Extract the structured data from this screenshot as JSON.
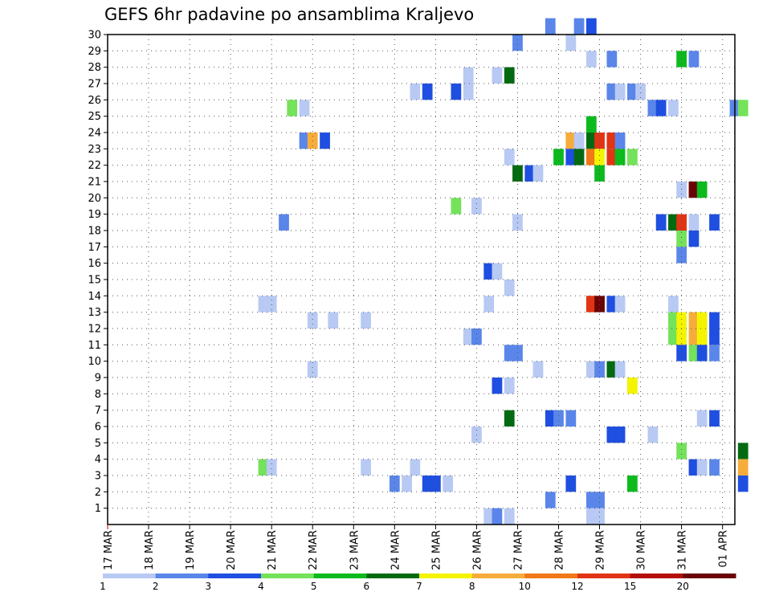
{
  "chart_data": {
    "type": "heatmap",
    "title": "GEFS 6hr padavine po ansamblima Kraljevo",
    "x_tick_labels": [
      "17 MAR",
      "18 MAR",
      "19 MAR",
      "20 MAR",
      "21 MAR",
      "22 MAR",
      "23 MAR",
      "24 MAR",
      "25 MAR",
      "26 MAR",
      "27 MAR",
      "28 MAR",
      "29 MAR",
      "30 MAR",
      "31 MAR",
      "01 APR"
    ],
    "x_range_days": [
      0,
      15.3
    ],
    "y_tick_labels": [
      "1",
      "2",
      "3",
      "4",
      "5",
      "6",
      "7",
      "8",
      "9",
      "10",
      "11",
      "12",
      "13",
      "14",
      "15",
      "16",
      "17",
      "18",
      "19",
      "20",
      "21",
      "22",
      "23",
      "24",
      "25",
      "26",
      "27",
      "28",
      "29",
      "30"
    ],
    "y_range": [
      0,
      30
    ],
    "grid": true,
    "color_levels": [
      1,
      2,
      3,
      4,
      5,
      6,
      7,
      8,
      10,
      12,
      15,
      20
    ],
    "level_colors": [
      "#b8c9f3",
      "#5a86ea",
      "#1f4fe0",
      "#74e25a",
      "#0cba1e",
      "#046a12",
      "#f4f400",
      "#f6ac3a",
      "#f07818",
      "#e03414",
      "#b40e0a",
      "#6a0404"
    ],
    "cells": [
      [
        30,
        10.8,
        1
      ],
      [
        30,
        11.5,
        1
      ],
      [
        30,
        11.8,
        2
      ],
      [
        29,
        10.0,
        1
      ],
      [
        29,
        11.3,
        0
      ],
      [
        28,
        11.8,
        0
      ],
      [
        28,
        12.3,
        1
      ],
      [
        28,
        14.0,
        4
      ],
      [
        28,
        14.3,
        1
      ],
      [
        27,
        8.8,
        0
      ],
      [
        27,
        9.5,
        0
      ],
      [
        27,
        9.8,
        5
      ],
      [
        26,
        7.5,
        0
      ],
      [
        26,
        7.8,
        2
      ],
      [
        26,
        8.5,
        2
      ],
      [
        26,
        8.8,
        0
      ],
      [
        26,
        12.3,
        1
      ],
      [
        26,
        12.5,
        0
      ],
      [
        26,
        12.8,
        1
      ],
      [
        26,
        13.0,
        0
      ],
      [
        25,
        4.5,
        3
      ],
      [
        25,
        4.8,
        0
      ],
      [
        25,
        13.3,
        1
      ],
      [
        25,
        13.5,
        2
      ],
      [
        25,
        13.8,
        0
      ],
      [
        25,
        15.3,
        1
      ],
      [
        25,
        15.5,
        3
      ],
      [
        24,
        11.8,
        4
      ],
      [
        23,
        4.8,
        1
      ],
      [
        23,
        5.0,
        7
      ],
      [
        23,
        5.3,
        2
      ],
      [
        23,
        11.3,
        7
      ],
      [
        23,
        11.5,
        0
      ],
      [
        23,
        11.8,
        5
      ],
      [
        23,
        12.0,
        9
      ],
      [
        23,
        12.3,
        9
      ],
      [
        23,
        12.5,
        1
      ],
      [
        22,
        9.8,
        0
      ],
      [
        22,
        11.0,
        4
      ],
      [
        22,
        11.3,
        2
      ],
      [
        22,
        11.5,
        5
      ],
      [
        22,
        11.8,
        8
      ],
      [
        22,
        12.0,
        6
      ],
      [
        22,
        12.3,
        9
      ],
      [
        22,
        12.5,
        4
      ],
      [
        22,
        12.8,
        3
      ],
      [
        21,
        10.0,
        5
      ],
      [
        21,
        10.3,
        2
      ],
      [
        21,
        10.5,
        0
      ],
      [
        21,
        12.0,
        4
      ],
      [
        20,
        14.0,
        0
      ],
      [
        20,
        14.3,
        11
      ],
      [
        20,
        14.5,
        4
      ],
      [
        19,
        8.5,
        3
      ],
      [
        19,
        9.0,
        0
      ],
      [
        18,
        4.3,
        1
      ],
      [
        18,
        10.0,
        0
      ],
      [
        18,
        13.5,
        2
      ],
      [
        18,
        13.8,
        5
      ],
      [
        18,
        14.0,
        9
      ],
      [
        18,
        14.3,
        0
      ],
      [
        18,
        14.8,
        2
      ],
      [
        17,
        14.0,
        3
      ],
      [
        17,
        14.3,
        2
      ],
      [
        16,
        14.0,
        1
      ],
      [
        15,
        9.3,
        2
      ],
      [
        15,
        9.5,
        0
      ],
      [
        14,
        9.8,
        0
      ],
      [
        13,
        3.8,
        0
      ],
      [
        13,
        4.0,
        0
      ],
      [
        13,
        9.3,
        0
      ],
      [
        13,
        11.8,
        9
      ],
      [
        13,
        12.0,
        11
      ],
      [
        13,
        12.3,
        2
      ],
      [
        13,
        12.5,
        0
      ],
      [
        13,
        13.8,
        0
      ],
      [
        12,
        5.0,
        0
      ],
      [
        12,
        5.5,
        0
      ],
      [
        12,
        6.3,
        0
      ],
      [
        12,
        13.8,
        3
      ],
      [
        12,
        14.0,
        6
      ],
      [
        12,
        14.3,
        7
      ],
      [
        12,
        14.5,
        6
      ],
      [
        12,
        14.8,
        2
      ],
      [
        11,
        8.8,
        0
      ],
      [
        11,
        9.0,
        1
      ],
      [
        11,
        13.8,
        3
      ],
      [
        11,
        14.0,
        6
      ],
      [
        11,
        14.3,
        7
      ],
      [
        11,
        14.5,
        6
      ],
      [
        11,
        14.8,
        2
      ],
      [
        10,
        9.8,
        1
      ],
      [
        10,
        10.0,
        1
      ],
      [
        10,
        14.0,
        2
      ],
      [
        10,
        14.3,
        3
      ],
      [
        10,
        14.5,
        2
      ],
      [
        10,
        14.8,
        1
      ],
      [
        9,
        5.0,
        0
      ],
      [
        9,
        10.5,
        0
      ],
      [
        9,
        11.8,
        0
      ],
      [
        9,
        12.0,
        1
      ],
      [
        9,
        12.3,
        5
      ],
      [
        9,
        12.5,
        0
      ],
      [
        8,
        9.5,
        2
      ],
      [
        8,
        9.8,
        0
      ],
      [
        8,
        12.8,
        6
      ],
      [
        6,
        9.8,
        5
      ],
      [
        6,
        10.8,
        2
      ],
      [
        6,
        11.0,
        1
      ],
      [
        6,
        11.3,
        1
      ],
      [
        6,
        14.5,
        0
      ],
      [
        6,
        14.8,
        2
      ],
      [
        5,
        9.0,
        0
      ],
      [
        5,
        12.3,
        2
      ],
      [
        5,
        12.5,
        2
      ],
      [
        5,
        13.3,
        0
      ],
      [
        4,
        14.0,
        3
      ],
      [
        4,
        15.5,
        5
      ],
      [
        3,
        3.8,
        3
      ],
      [
        3,
        4.0,
        0
      ],
      [
        3,
        6.3,
        0
      ],
      [
        3,
        7.5,
        0
      ],
      [
        3,
        14.3,
        2
      ],
      [
        3,
        14.5,
        0
      ],
      [
        3,
        14.8,
        1
      ],
      [
        3,
        15.5,
        7
      ],
      [
        2,
        7.0,
        1
      ],
      [
        2,
        7.3,
        0
      ],
      [
        2,
        7.8,
        2
      ],
      [
        2,
        8.0,
        2
      ],
      [
        2,
        8.3,
        0
      ],
      [
        2,
        11.3,
        2
      ],
      [
        2,
        12.8,
        4
      ],
      [
        2,
        15.5,
        2
      ],
      [
        1,
        10.8,
        1
      ],
      [
        1,
        11.8,
        1
      ],
      [
        1,
        12.0,
        1
      ],
      [
        0,
        9.3,
        0
      ],
      [
        0,
        9.5,
        1
      ],
      [
        0,
        9.8,
        0
      ],
      [
        0,
        11.8,
        0
      ],
      [
        0,
        12.0,
        0
      ]
    ]
  }
}
